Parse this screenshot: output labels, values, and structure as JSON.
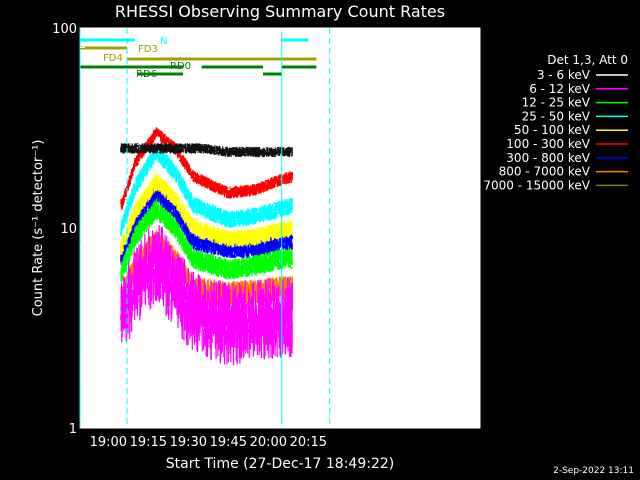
{
  "chart_data": {
    "type": "line",
    "title": "RHESSI Observing Summary Count Rates",
    "xlabel": "Start Time (27-Dec-17 18:49:22)",
    "ylabel": "Count Rate (s⁻¹ detector⁻¹)",
    "y_scale": "log",
    "ylim": [
      1,
      100
    ],
    "y_ticks": [
      {
        "v": 1,
        "label": "1"
      },
      {
        "v": 10,
        "label": "10"
      },
      {
        "v": 100,
        "label": "100"
      }
    ],
    "xlim": [
      "18:49:22",
      "21:19:22"
    ],
    "x_ticks": [
      "19:00",
      "19:15",
      "19:30",
      "19:45",
      "20:00",
      "20:15"
    ],
    "detector_label": "Det 1,3, Att 0",
    "footer_date": "2-Sep-2022 13:11",
    "data_window": [
      "19:04:40",
      "20:09:00"
    ],
    "series": [
      {
        "name": "3 - 6 keV",
        "color": "#000000",
        "peak": 26,
        "knots": [
          [
            "19:05",
            25
          ],
          [
            "19:15",
            25
          ],
          [
            "19:25",
            25
          ],
          [
            "19:35",
            25
          ],
          [
            "19:45",
            24
          ],
          [
            "19:55",
            24
          ],
          [
            "20:05",
            24
          ],
          [
            "20:09",
            24
          ]
        ],
        "noise": 0.06
      },
      {
        "name": "6 - 12 keV",
        "color": "#ff00ff",
        "peak": 7,
        "knots": [
          [
            "19:05",
            3.5
          ],
          [
            "19:10",
            5
          ],
          [
            "19:18",
            7
          ],
          [
            "19:25",
            5
          ],
          [
            "19:32",
            3.8
          ],
          [
            "19:45",
            3.3
          ],
          [
            "19:55",
            3.5
          ],
          [
            "20:05",
            3.6
          ],
          [
            "20:09",
            3.6
          ]
        ],
        "noise": 0.22
      },
      {
        "name": "12 - 25 keV",
        "color": "#00ff00",
        "peak": 13,
        "knots": [
          [
            "19:05",
            6
          ],
          [
            "19:10",
            9
          ],
          [
            "19:18",
            12.5
          ],
          [
            "19:25",
            10
          ],
          [
            "19:32",
            7
          ],
          [
            "19:45",
            6.2
          ],
          [
            "19:55",
            6.5
          ],
          [
            "20:05",
            7
          ],
          [
            "20:09",
            7
          ]
        ],
        "noise": 0.12
      },
      {
        "name": "25 - 50 keV",
        "color": "#00ffff",
        "peak": 25,
        "knots": [
          [
            "19:05",
            10
          ],
          [
            "19:10",
            16
          ],
          [
            "19:18",
            24
          ],
          [
            "19:25",
            19
          ],
          [
            "19:32",
            13
          ],
          [
            "19:45",
            11
          ],
          [
            "19:55",
            11.5
          ],
          [
            "20:05",
            12.5
          ],
          [
            "20:09",
            13
          ]
        ],
        "noise": 0.1
      },
      {
        "name": "50 - 100 keV",
        "color": "#ffff00",
        "peak": 18,
        "knots": [
          [
            "19:05",
            8
          ],
          [
            "19:10",
            12
          ],
          [
            "19:18",
            17
          ],
          [
            "19:25",
            14
          ],
          [
            "19:32",
            10
          ],
          [
            "19:45",
            8.8
          ],
          [
            "19:55",
            9
          ],
          [
            "20:05",
            9.8
          ],
          [
            "20:09",
            10
          ]
        ],
        "noise": 0.1
      },
      {
        "name": "100 - 300 keV",
        "color": "#ff0000",
        "peak": 31,
        "knots": [
          [
            "19:05",
            13
          ],
          [
            "19:10",
            21
          ],
          [
            "19:18",
            30
          ],
          [
            "19:25",
            25
          ],
          [
            "19:32",
            18
          ],
          [
            "19:45",
            15
          ],
          [
            "19:55",
            15.5
          ],
          [
            "20:05",
            17.5
          ],
          [
            "20:09",
            18
          ]
        ],
        "noise": 0.07
      },
      {
        "name": "300 - 800 keV",
        "color": "#0000ff",
        "peak": 15,
        "knots": [
          [
            "19:05",
            7
          ],
          [
            "19:10",
            10.5
          ],
          [
            "19:18",
            15
          ],
          [
            "19:25",
            12
          ],
          [
            "19:32",
            8.5
          ],
          [
            "19:45",
            7.8
          ],
          [
            "19:55",
            7.8
          ],
          [
            "20:05",
            8.5
          ],
          [
            "20:09",
            8.5
          ]
        ],
        "noise": 0.1
      },
      {
        "name": "800 - 7000 keV",
        "color": "#ff8000",
        "peak": 9,
        "knots": [
          [
            "19:05",
            4.5
          ],
          [
            "19:10",
            6.5
          ],
          [
            "19:18",
            8.5
          ],
          [
            "19:25",
            7
          ],
          [
            "19:32",
            5
          ],
          [
            "19:45",
            4.7
          ],
          [
            "19:55",
            4.8
          ],
          [
            "20:05",
            5
          ],
          [
            "20:09",
            5
          ]
        ],
        "noise": 0.14
      },
      {
        "name": "7000 - 15000 keV",
        "color": "#808000",
        "peak": null,
        "knots": [],
        "noise": 0
      }
    ],
    "state_bars": [
      {
        "label": "N",
        "color": "#00ffff",
        "label_color": "#00ffff",
        "y": 0,
        "segments": [
          [
            "18:49:22",
            "19:10"
          ],
          [
            "20:05",
            "20:15"
          ]
        ]
      },
      {
        "label": "FD3",
        "color": "#a0a000",
        "label_color": "#a0a000",
        "y": 1,
        "segments": [
          [
            "18:49:22",
            "19:07"
          ]
        ]
      },
      {
        "label": "FD4",
        "color": "#a0a000",
        "label_color": "#a0a000",
        "y": 2,
        "segments": [
          [
            "19:07",
            "20:18"
          ]
        ]
      },
      {
        "label": "RD0",
        "color": "#008000",
        "label_color": "#008000",
        "y": 3,
        "segments": [
          [
            "18:49:22",
            "19:28"
          ],
          [
            "19:35",
            "19:58"
          ],
          [
            "20:05",
            "20:18"
          ]
        ]
      },
      {
        "label": "RD6",
        "color": "#008000",
        "label_color": "#008000",
        "y": 4,
        "segments": [
          [
            "19:11",
            "19:28"
          ],
          [
            "19:58",
            "20:05"
          ]
        ]
      }
    ],
    "vertical_markers": [
      {
        "time": "18:49:22",
        "style": "solid",
        "color": "#00ffff"
      },
      {
        "time": "19:07:00",
        "style": "dashed",
        "color": "#00ffff"
      },
      {
        "time": "20:05:00",
        "style": "solid",
        "color": "#00ffff"
      },
      {
        "time": "20:23:00",
        "style": "dashed",
        "color": "#00ffff"
      }
    ]
  }
}
